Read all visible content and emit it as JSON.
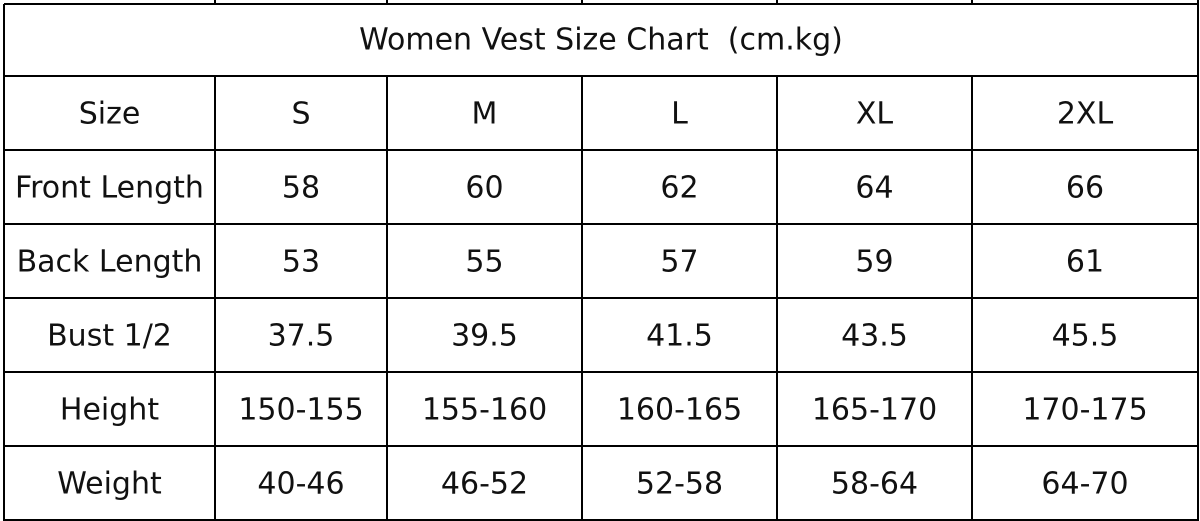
{
  "title": "Women Vest Size Chart  (cm.kg)",
  "table": {
    "header": [
      "Size",
      "S",
      "M",
      "L",
      "XL",
      "2XL"
    ],
    "rows": [
      [
        "Front Length",
        "58",
        "60",
        "62",
        "64",
        "66"
      ],
      [
        "Back Length",
        "53",
        "55",
        "57",
        "59",
        "61"
      ],
      [
        "Bust 1/2",
        "37.5",
        "39.5",
        "41.5",
        "43.5",
        "45.5"
      ],
      [
        "Height",
        "150-155",
        "155-160",
        "160-165",
        "165-170",
        "170-175"
      ],
      [
        "Weight",
        "40-46",
        "46-52",
        "52-58",
        "58-64",
        "64-70"
      ]
    ]
  }
}
